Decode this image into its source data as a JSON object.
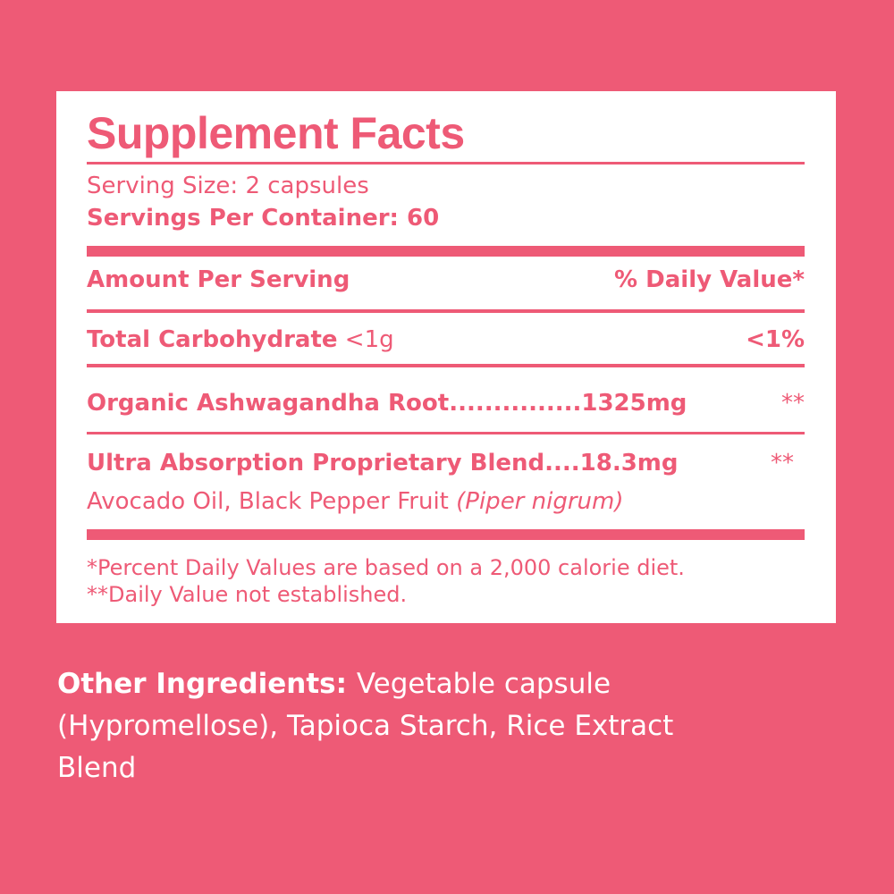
{
  "colors": {
    "background": "#EE5A76",
    "panel": "#FFFFFF",
    "text": "#EE5A76"
  },
  "title": "Supplement Facts",
  "serving_size": "Serving Size: 2 capsules",
  "servings_per_container": "Servings Per Container: 60",
  "header": {
    "left": "Amount Per Serving",
    "right": "% Daily Value*"
  },
  "rows": [
    {
      "name": "Total Carbohydrate",
      "amount": " <1g",
      "dv": "<1%"
    },
    {
      "name": "Organic Ashwagandha Root...............1325mg",
      "dv": "**"
    },
    {
      "name": "Ultra Absorption Proprietary Blend....18.3mg",
      "dv": "**",
      "sub": "Avocado Oil, Black Pepper Fruit ",
      "sub_italic": "(Piper nigrum)"
    }
  ],
  "footnotes": [
    "*Percent Daily Values are based on a 2,000 calorie diet.",
    "**Daily Value not established."
  ],
  "other_ingredients": {
    "label": "Other Ingredients: ",
    "text": " Vegetable capsule (Hypromellose), Tapioca Starch, Rice Extract Blend"
  }
}
